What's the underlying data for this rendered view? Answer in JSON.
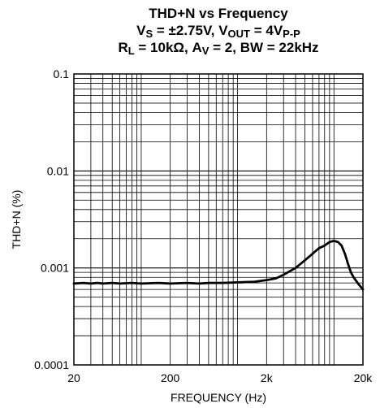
{
  "chart_data": {
    "type": "line",
    "title_lines": [
      {
        "parts": [
          {
            "text": "THD+N vs Frequency",
            "sub": false
          }
        ]
      },
      {
        "parts": [
          {
            "text": "V",
            "sub": false
          },
          {
            "text": "S",
            "sub": true
          },
          {
            "text": " = ±2.75V, V",
            "sub": false
          },
          {
            "text": "OUT",
            "sub": true
          },
          {
            "text": " = 4V",
            "sub": false
          },
          {
            "text": "P-P",
            "sub": true
          }
        ]
      },
      {
        "parts": [
          {
            "text": "R",
            "sub": false
          },
          {
            "text": "L",
            "sub": true
          },
          {
            "text": " = 10kΩ, A",
            "sub": false
          },
          {
            "text": "V",
            "sub": true
          },
          {
            "text": " = 2, BW = 22kHz",
            "sub": false
          }
        ]
      }
    ],
    "xlabel": "FREQUENCY (Hz)",
    "ylabel": "THD+N (%)",
    "x_scale": "log",
    "y_scale": "log",
    "xlim": [
      20,
      20000
    ],
    "ylim": [
      0.0001,
      0.1
    ],
    "x_ticks": [
      {
        "value": 20,
        "label": "20"
      },
      {
        "value": 200,
        "label": "200"
      },
      {
        "value": 2000,
        "label": "2k"
      },
      {
        "value": 20000,
        "label": "20k"
      }
    ],
    "y_ticks": [
      {
        "value": 0.0001,
        "label": "0.0001"
      },
      {
        "value": 0.001,
        "label": "0.001"
      },
      {
        "value": 0.01,
        "label": "0.01"
      },
      {
        "value": 0.1,
        "label": "0.1"
      }
    ],
    "grid": true,
    "line_color": "#000000",
    "series": [
      {
        "x": [
          20,
          25,
          30,
          35,
          40,
          50,
          60,
          80,
          100,
          150,
          200,
          300,
          400,
          500,
          700,
          1000,
          1500,
          2000,
          2500,
          3000,
          4000,
          5000,
          6000,
          7000,
          8000,
          9000,
          10000,
          11000,
          12000,
          13000,
          14000,
          15000,
          16000,
          18000,
          20000
        ],
        "y": [
          0.00069,
          0.0007,
          0.00069,
          0.0007,
          0.00069,
          0.0007,
          0.00069,
          0.0007,
          0.00069,
          0.0007,
          0.00069,
          0.0007,
          0.00069,
          0.0007,
          0.0007,
          0.00071,
          0.00072,
          0.00075,
          0.00078,
          0.00085,
          0.001,
          0.0012,
          0.0014,
          0.0016,
          0.0017,
          0.00185,
          0.0019,
          0.00185,
          0.0017,
          0.0014,
          0.0011,
          0.0009,
          0.0008,
          0.00068,
          0.0006
        ]
      }
    ]
  }
}
